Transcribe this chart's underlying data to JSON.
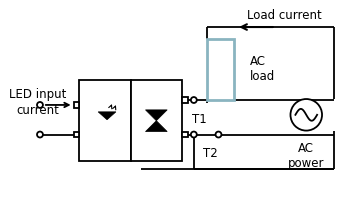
{
  "bg_color": "#ffffff",
  "text_color": "#000000",
  "line_color": "#000000",
  "load_box_color": "#8ab4c0",
  "led_input_text": "LED input\ncurrent",
  "load_current_text": "Load current",
  "ac_load_text": "AC\nload",
  "ac_power_text": "AC\npower",
  "t1_text": "T1",
  "t2_text": "T2",
  "figsize": [
    3.57,
    2.02
  ],
  "dpi": 100
}
